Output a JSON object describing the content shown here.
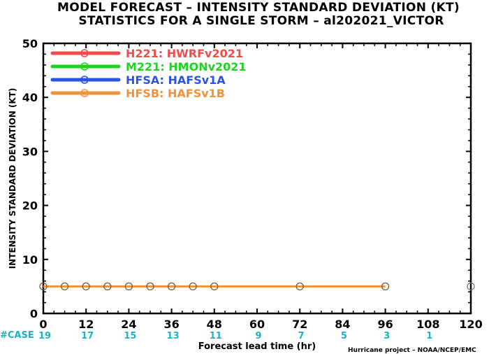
{
  "title_line1": "MODEL FORECAST – INTENSITY STANDARD DEVIATION (KT)",
  "title_line2": "STATISTICS FOR A SINGLE STORM – al202021_VICTOR",
  "case_label": "#CASE",
  "credit": "Hurricane project – NOAA/NCEP/EMC",
  "chart_data": {
    "type": "line",
    "title": "MODEL FORECAST – INTENSITY STANDARD DEVIATION (KT)",
    "subtitle": "STATISTICS FOR A SINGLE STORM – al202021_VICTOR",
    "xlabel": "Forecast lead time (hr)",
    "ylabel": "INTENSITY STANDARD DEVIATION (KT)",
    "xlim": [
      0,
      120
    ],
    "ylim": [
      0,
      50
    ],
    "xticks": [
      0,
      12,
      24,
      36,
      48,
      60,
      72,
      84,
      96,
      108,
      120
    ],
    "yticks": [
      0,
      10,
      20,
      30,
      40,
      50
    ],
    "grid": false,
    "legend_position": "top-left",
    "case_counts": [
      {
        "x": 0,
        "n": "19"
      },
      {
        "x": 12,
        "n": "17"
      },
      {
        "x": 24,
        "n": "15"
      },
      {
        "x": 36,
        "n": "13"
      },
      {
        "x": 48,
        "n": "11"
      },
      {
        "x": 60,
        "n": "9"
      },
      {
        "x": 72,
        "n": "7"
      },
      {
        "x": 84,
        "n": "5"
      },
      {
        "x": 96,
        "n": "3"
      },
      {
        "x": 108,
        "n": "1"
      }
    ],
    "series": [
      {
        "name": "H221: HWRFv2021",
        "color": "#f24b4b",
        "x": [],
        "values": []
      },
      {
        "name": "M221: HMONv2021",
        "color": "#1fd41f",
        "x": [],
        "values": []
      },
      {
        "name": "HFSA: HAFSv1A",
        "color": "#2b53e8",
        "x": [],
        "values": []
      },
      {
        "name": "HFSB: HAFSv1B",
        "color": "#f0913c",
        "x": [
          0,
          6,
          12,
          18,
          24,
          30,
          36,
          42,
          48,
          72,
          96
        ],
        "values": [
          5,
          5,
          5,
          5,
          5,
          5,
          5,
          5,
          5,
          5,
          5
        ]
      }
    ],
    "extra_points": [
      {
        "x": 120,
        "y": 5,
        "color": "#777777"
      }
    ]
  }
}
